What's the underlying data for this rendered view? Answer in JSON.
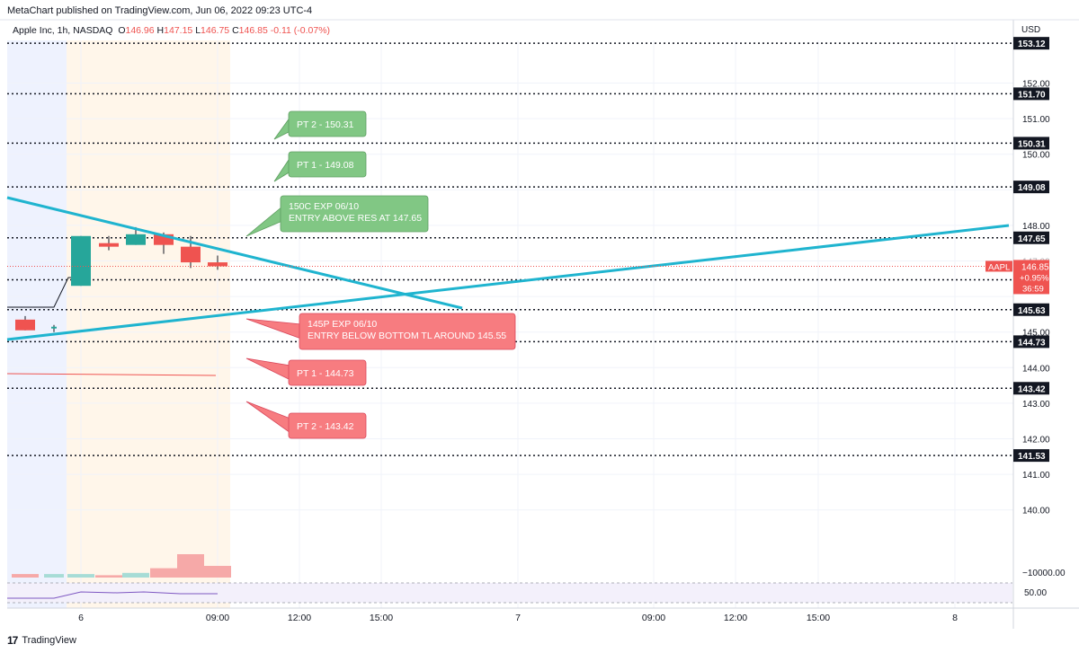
{
  "publisher_line": "MetaChart published on TradingView.com, Jun 06, 2022 09:23 UTC-4",
  "legend": {
    "symbol": "Apple Inc, 1h, NASDAQ",
    "o_label": "O",
    "o": "146.96",
    "h_label": "H",
    "h": "147.15",
    "l_label": "L",
    "l": "146.75",
    "c_label": "C",
    "c": "146.85",
    "change": "-0.11 (-0.07%)"
  },
  "currency": "USD",
  "footer": {
    "logo": "17",
    "text": "TradingView"
  },
  "colors": {
    "up": "#26a69a",
    "down": "#ef5350",
    "trendline": "#1fb4cf",
    "green_note": "#81c784",
    "red_note": "#f77c80",
    "session_pre": "#eef2ff",
    "session_day": "#fff6eb"
  },
  "chart_data": {
    "type": "candlestick",
    "symbol": "AAPL",
    "interval": "1h",
    "ylim": [
      139.0,
      154.0
    ],
    "price_ticks": [
      "152.00",
      "151.00",
      "150.00",
      "148.00",
      "147.00",
      "145.00",
      "144.00",
      "143.00",
      "142.00",
      "141.00",
      "140.00"
    ],
    "time_ticks": [
      "6",
      "09:00",
      "12:00",
      "15:00",
      "7",
      "09:00",
      "12:00",
      "15:00",
      "8"
    ],
    "candles": [
      {
        "o": 145.35,
        "h": 145.45,
        "l": 145.05,
        "c": 145.05
      },
      {
        "o": 145.1,
        "h": 145.2,
        "l": 145.0,
        "c": 145.15
      },
      {
        "o": 146.3,
        "h": 147.7,
        "l": 146.3,
        "c": 147.7
      },
      {
        "o": 147.5,
        "h": 147.7,
        "l": 147.3,
        "c": 147.4
      },
      {
        "o": 147.45,
        "h": 147.95,
        "l": 147.45,
        "c": 147.75
      },
      {
        "o": 147.75,
        "h": 147.8,
        "l": 147.2,
        "c": 147.45
      },
      {
        "o": 147.4,
        "h": 147.7,
        "l": 146.8,
        "c": 146.96
      },
      {
        "o": 146.96,
        "h": 147.15,
        "l": 146.75,
        "c": 146.85
      }
    ],
    "horizontal_levels": [
      {
        "value": 153.12,
        "label": "153.12"
      },
      {
        "value": 151.7,
        "label": "151.70"
      },
      {
        "value": 150.31,
        "label": "150.31"
      },
      {
        "value": 149.08,
        "label": "149.08"
      },
      {
        "value": 147.65,
        "label": "147.65"
      },
      {
        "value": 146.47,
        "label": "146.47"
      },
      {
        "value": 145.63,
        "label": "145.63"
      },
      {
        "value": 144.73,
        "label": "144.73"
      },
      {
        "value": 143.42,
        "label": "143.42"
      },
      {
        "value": 141.53,
        "label": "141.53"
      }
    ],
    "last_price": {
      "symbol": "AAPL",
      "price": "146.85",
      "change": "+0.95%",
      "countdown": "36:59",
      "value": 146.85
    },
    "annotations": [
      {
        "kind": "green",
        "lines": [
          "PT 2 - 150.31"
        ]
      },
      {
        "kind": "green",
        "lines": [
          "PT 1 - 149.08"
        ]
      },
      {
        "kind": "green",
        "lines": [
          "150C EXP 06/10",
          "ENTRY ABOVE RES AT 147.65"
        ]
      },
      {
        "kind": "red",
        "lines": [
          "145P EXP 06/10",
          "ENTRY BELOW BOTTOM TL AROUND 145.55"
        ]
      },
      {
        "kind": "red",
        "lines": [
          "PT 1 - 144.73"
        ]
      },
      {
        "kind": "red",
        "lines": [
          "PT 2 - 143.42"
        ]
      }
    ],
    "volume": {
      "axis_label": "−10000.00",
      "bars": [
        0.15,
        0.15,
        0.15,
        0.1,
        0.2,
        0.4,
        1.0,
        0.5
      ]
    },
    "oscillator": {
      "axis_label": "50.00"
    }
  }
}
